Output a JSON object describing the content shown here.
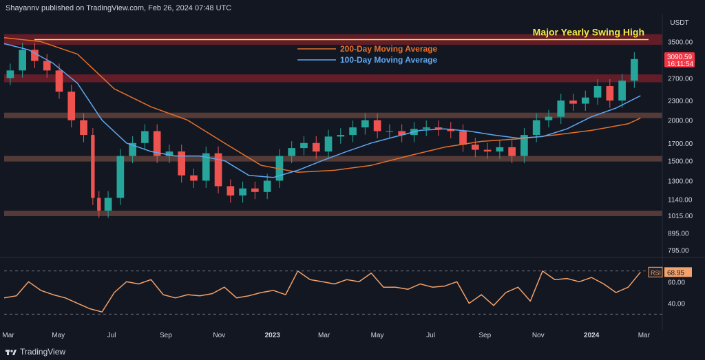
{
  "header": {
    "text": "Shayannv published on TradingView.com, Feb 26, 2024 07:48 UTC"
  },
  "footer": {
    "brand": "TradingView"
  },
  "currency": "USDT",
  "colors": {
    "background": "#131722",
    "ma200": "#e8702a",
    "ma100": "#5fa8f0",
    "rsi": "#f3a26b",
    "zone_red": "#6b1e2a",
    "zone_brown": "#5c3f3a",
    "swing_line": "#f5e94a",
    "price_badge": "#f23645"
  },
  "chart_data": [
    {
      "type": "line",
      "title": "",
      "annotations": {
        "swing_high": "Major Yearly Swing High",
        "swing_high_price": 3550
      },
      "legend": {
        "placement": "top-center",
        "items": [
          {
            "label": "200-Day Moving Average",
            "color": "#e8702a"
          },
          {
            "label": "100-Day Moving Average",
            "color": "#5fa8f0"
          }
        ]
      },
      "y_scale": "log",
      "ylim": [
        760,
        3720
      ],
      "y_ticks": [
        "3500.00",
        "3090.59",
        "2700.00",
        "2300.00",
        "2000.00",
        "1700.00",
        "1500.00",
        "1300.00",
        "1140.00",
        "1015.00",
        "895.00",
        "795.00"
      ],
      "x_ticks": [
        "Mar",
        "May",
        "Jul",
        "Sep",
        "Nov",
        "2023",
        "Mar",
        "May",
        "Jul",
        "Sep",
        "Nov",
        "2024",
        "Mar"
      ],
      "current_price": {
        "value": 3090.59,
        "label": "3090.59",
        "countdown": "16:11:54"
      },
      "zones": [
        {
          "kind": "resistance",
          "low": 3420,
          "high": 3690
        },
        {
          "kind": "resistance",
          "low": 2620,
          "high": 2770
        },
        {
          "kind": "support",
          "low": 2030,
          "high": 2110
        },
        {
          "kind": "support",
          "low": 1490,
          "high": 1550
        },
        {
          "kind": "support",
          "low": 1010,
          "high": 1050
        }
      ],
      "series": [
        {
          "name": "Price",
          "x": [
            "2022-02-28",
            "2022-03-14",
            "2022-03-28",
            "2022-04-11",
            "2022-04-25",
            "2022-05-09",
            "2022-05-23",
            "2022-06-06",
            "2022-06-13",
            "2022-06-20",
            "2022-07-04",
            "2022-07-18",
            "2022-08-01",
            "2022-08-15",
            "2022-08-29",
            "2022-09-12",
            "2022-09-26",
            "2022-10-10",
            "2022-10-24",
            "2022-11-07",
            "2022-11-21",
            "2022-12-05",
            "2022-12-19",
            "2023-01-02",
            "2023-01-16",
            "2023-01-30",
            "2023-02-13",
            "2023-02-27",
            "2023-03-13",
            "2023-03-27",
            "2023-04-10",
            "2023-04-24",
            "2023-05-08",
            "2023-05-22",
            "2023-06-05",
            "2023-06-19",
            "2023-07-03",
            "2023-07-17",
            "2023-07-31",
            "2023-08-14",
            "2023-08-28",
            "2023-09-11",
            "2023-09-25",
            "2023-10-09",
            "2023-10-23",
            "2023-11-06",
            "2023-11-20",
            "2023-12-04",
            "2023-12-18",
            "2024-01-01",
            "2024-01-15",
            "2024-01-29",
            "2024-02-12",
            "2024-02-26"
          ],
          "values": [
            2700,
            2850,
            3300,
            3050,
            2850,
            2450,
            2000,
            1800,
            1150,
            1050,
            1150,
            1550,
            1700,
            1850,
            1550,
            1600,
            1350,
            1300,
            1580,
            1250,
            1170,
            1230,
            1200,
            1300,
            1550,
            1640,
            1700,
            1600,
            1780,
            1800,
            1900,
            2000,
            1850,
            1850,
            1800,
            1880,
            1900,
            1880,
            1850,
            1680,
            1620,
            1600,
            1650,
            1550,
            1800,
            2000,
            2050,
            2300,
            2250,
            2350,
            2550,
            2300,
            2650,
            3090.59
          ]
        },
        {
          "name": "200-Day Moving Average",
          "x": [
            "2022-02-28",
            "2022-04-11",
            "2022-05-23",
            "2022-07-04",
            "2022-08-15",
            "2022-09-26",
            "2022-11-07",
            "2022-12-19",
            "2023-01-30",
            "2023-03-13",
            "2023-04-24",
            "2023-06-05",
            "2023-07-17",
            "2023-08-28",
            "2023-10-09",
            "2023-11-20",
            "2024-01-01",
            "2024-02-12",
            "2024-02-26"
          ],
          "values": [
            3600,
            3500,
            3200,
            2500,
            2200,
            2000,
            1700,
            1450,
            1380,
            1400,
            1450,
            1550,
            1650,
            1720,
            1750,
            1800,
            1860,
            1950,
            2030
          ]
        },
        {
          "name": "100-Day Moving Average",
          "x": [
            "2022-02-28",
            "2022-03-28",
            "2022-04-25",
            "2022-05-23",
            "2022-06-20",
            "2022-07-18",
            "2022-08-15",
            "2022-09-12",
            "2022-10-10",
            "2022-11-07",
            "2022-12-05",
            "2023-01-02",
            "2023-01-30",
            "2023-02-27",
            "2023-03-27",
            "2023-04-24",
            "2023-05-22",
            "2023-06-19",
            "2023-07-17",
            "2023-08-14",
            "2023-09-11",
            "2023-10-09",
            "2023-11-06",
            "2023-12-04",
            "2024-01-01",
            "2024-01-29",
            "2024-02-26"
          ],
          "values": [
            3450,
            3300,
            3000,
            2600,
            2000,
            1700,
            1600,
            1550,
            1550,
            1500,
            1350,
            1330,
            1400,
            1500,
            1600,
            1700,
            1780,
            1860,
            1880,
            1850,
            1800,
            1760,
            1780,
            1880,
            2050,
            2180,
            2380
          ]
        }
      ]
    },
    {
      "type": "line",
      "title": "",
      "indicator": "RSI",
      "current": {
        "label": "RSI",
        "value": "68.95"
      },
      "ylim": [
        20,
        80
      ],
      "y_ticks": [
        "60.00",
        "40.00"
      ],
      "bands": [
        70,
        30
      ],
      "series": [
        {
          "name": "RSI",
          "x": [
            "2022-02-28",
            "2022-03-14",
            "2022-03-28",
            "2022-04-11",
            "2022-04-25",
            "2022-05-09",
            "2022-05-23",
            "2022-06-06",
            "2022-06-20",
            "2022-07-04",
            "2022-07-18",
            "2022-08-01",
            "2022-08-15",
            "2022-08-29",
            "2022-09-12",
            "2022-09-26",
            "2022-10-10",
            "2022-10-24",
            "2022-11-07",
            "2022-11-21",
            "2022-12-05",
            "2022-12-19",
            "2023-01-02",
            "2023-01-16",
            "2023-01-30",
            "2023-02-13",
            "2023-02-27",
            "2023-03-13",
            "2023-03-27",
            "2023-04-10",
            "2023-04-24",
            "2023-05-08",
            "2023-05-22",
            "2023-06-05",
            "2023-06-19",
            "2023-07-03",
            "2023-07-17",
            "2023-07-31",
            "2023-08-14",
            "2023-08-28",
            "2023-09-11",
            "2023-09-25",
            "2023-10-09",
            "2023-10-23",
            "2023-11-06",
            "2023-11-20",
            "2023-12-04",
            "2023-12-18",
            "2024-01-01",
            "2024-01-15",
            "2024-01-29",
            "2024-02-12",
            "2024-02-26"
          ],
          "values": [
            45,
            47,
            60,
            52,
            48,
            45,
            40,
            35,
            32,
            50,
            60,
            58,
            62,
            48,
            45,
            48,
            47,
            49,
            55,
            45,
            47,
            50,
            52,
            48,
            70,
            62,
            60,
            58,
            62,
            60,
            68,
            55,
            55,
            53,
            58,
            55,
            56,
            60,
            40,
            48,
            38,
            50,
            55,
            42,
            70,
            62,
            63,
            60,
            64,
            58,
            50,
            55,
            68.95
          ]
        }
      ]
    }
  ]
}
